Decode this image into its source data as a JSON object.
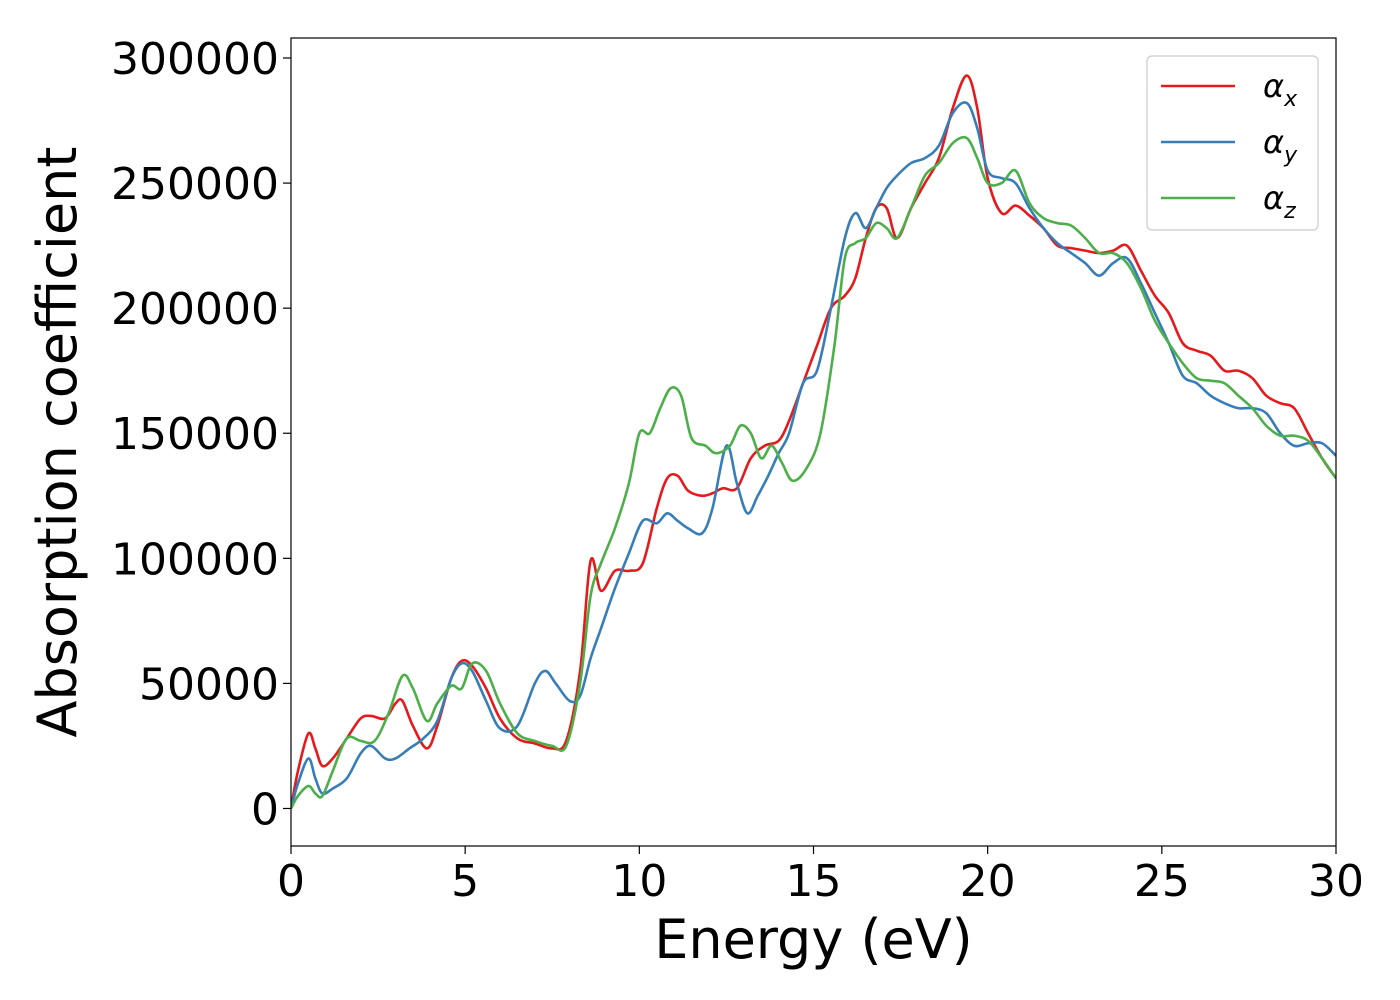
{
  "chart_data": {
    "type": "line",
    "title": "",
    "xlabel": "Energy (eV)",
    "ylabel": "Absorption coefficient",
    "xlim": [
      0,
      30
    ],
    "ylim": [
      -15000,
      308000
    ],
    "xticks": [
      0,
      5,
      10,
      15,
      20,
      25,
      30
    ],
    "yticks": [
      0,
      50000,
      100000,
      150000,
      200000,
      250000,
      300000
    ],
    "xtick_labels": [
      "0",
      "5",
      "10",
      "15",
      "20",
      "25",
      "30"
    ],
    "ytick_labels": [
      "0",
      "50000",
      "100000",
      "150000",
      "200000",
      "250000",
      "300000"
    ],
    "grid": false,
    "legend_position": "top-right",
    "series": [
      {
        "name": "α_x",
        "symbol": "α",
        "subscript": "x",
        "color": "#e41a1c",
        "x": [
          0,
          0.2,
          0.5,
          0.7,
          0.9,
          1.2,
          1.6,
          2.0,
          2.3,
          2.7,
          3.0,
          3.2,
          3.5,
          3.9,
          4.2,
          4.6,
          4.9,
          5.2,
          5.6,
          6.0,
          6.5,
          7.0,
          7.5,
          7.9,
          8.3,
          8.6,
          8.9,
          9.3,
          9.7,
          10.1,
          10.5,
          10.8,
          11.1,
          11.4,
          11.8,
          12.1,
          12.4,
          12.8,
          13.2,
          13.6,
          14.0,
          14.3,
          14.7,
          15.1,
          15.5,
          15.9,
          16.2,
          16.5,
          16.8,
          17.1,
          17.4,
          17.8,
          18.2,
          18.6,
          19.0,
          19.4,
          19.7,
          20.0,
          20.4,
          20.8,
          21.2,
          21.6,
          22.0,
          22.4,
          22.8,
          23.2,
          23.6,
          24.0,
          24.4,
          24.8,
          25.2,
          25.6,
          26.0,
          26.4,
          26.8,
          27.2,
          27.6,
          28.0,
          28.4,
          28.8,
          29.2,
          29.6,
          30.0
        ],
        "values": [
          0,
          15000,
          30000,
          24000,
          17000,
          20000,
          28000,
          36000,
          37000,
          36000,
          42000,
          43000,
          33000,
          24000,
          33000,
          52000,
          59000,
          57000,
          48000,
          36000,
          28000,
          26000,
          24000,
          27000,
          55000,
          99000,
          87000,
          95000,
          95000,
          98000,
          120000,
          132000,
          133000,
          127000,
          125000,
          126000,
          128000,
          128000,
          140000,
          145000,
          147000,
          155000,
          170000,
          185000,
          200000,
          205000,
          212000,
          228000,
          240000,
          240000,
          228000,
          240000,
          250000,
          260000,
          280000,
          293000,
          280000,
          252000,
          238000,
          241000,
          237000,
          232000,
          225000,
          224000,
          223000,
          222000,
          223000,
          225000,
          215000,
          205000,
          198000,
          186000,
          183000,
          181000,
          175000,
          175000,
          172000,
          165000,
          162000,
          160000,
          150000,
          140000,
          132000
        ]
      },
      {
        "name": "α_y",
        "symbol": "α",
        "subscript": "y",
        "color": "#377eb8",
        "x": [
          0,
          0.2,
          0.5,
          0.7,
          0.9,
          1.2,
          1.6,
          2.0,
          2.3,
          2.7,
          3.0,
          3.4,
          3.8,
          4.2,
          4.6,
          4.9,
          5.2,
          5.6,
          6.0,
          6.5,
          7.0,
          7.3,
          7.6,
          8.0,
          8.3,
          8.6,
          8.9,
          9.3,
          9.7,
          10.1,
          10.5,
          10.8,
          11.1,
          11.4,
          11.8,
          12.1,
          12.5,
          12.8,
          13.1,
          13.4,
          13.7,
          14.0,
          14.3,
          14.7,
          15.1,
          15.5,
          15.9,
          16.2,
          16.5,
          16.8,
          17.1,
          17.4,
          17.8,
          18.2,
          18.6,
          19.0,
          19.4,
          19.7,
          20.0,
          20.4,
          20.8,
          21.2,
          21.6,
          22.0,
          22.4,
          22.8,
          23.2,
          23.6,
          24.0,
          24.4,
          24.8,
          25.2,
          25.6,
          26.0,
          26.4,
          26.8,
          27.2,
          27.6,
          28.0,
          28.4,
          28.8,
          29.2,
          29.6,
          30.0
        ],
        "values": [
          0,
          10000,
          20000,
          12000,
          6000,
          8000,
          12000,
          22000,
          25000,
          20000,
          20000,
          24000,
          28000,
          35000,
          52000,
          58000,
          55000,
          43000,
          32000,
          33000,
          50000,
          55000,
          50000,
          43000,
          45000,
          60000,
          72000,
          88000,
          102000,
          115000,
          114000,
          118000,
          115000,
          112000,
          110000,
          120000,
          145000,
          130000,
          118000,
          125000,
          133000,
          142000,
          150000,
          170000,
          175000,
          200000,
          228000,
          238000,
          232000,
          240000,
          248000,
          253000,
          258000,
          260000,
          265000,
          278000,
          282000,
          272000,
          255000,
          252000,
          250000,
          240000,
          232000,
          226000,
          222000,
          218000,
          213000,
          218000,
          220000,
          210000,
          198000,
          186000,
          173000,
          170000,
          165000,
          162000,
          160000,
          160000,
          158000,
          150000,
          145000,
          146000,
          146000,
          141000
        ]
      },
      {
        "name": "α_z",
        "symbol": "α",
        "subscript": "z",
        "color": "#4daf4a",
        "x": [
          0,
          0.2,
          0.5,
          0.7,
          0.9,
          1.2,
          1.6,
          2.0,
          2.4,
          2.8,
          3.2,
          3.5,
          3.9,
          4.2,
          4.6,
          4.9,
          5.2,
          5.6,
          6.0,
          6.5,
          7.0,
          7.5,
          7.9,
          8.3,
          8.6,
          8.9,
          9.3,
          9.7,
          10.0,
          10.3,
          10.6,
          10.9,
          11.2,
          11.5,
          11.9,
          12.2,
          12.6,
          12.9,
          13.2,
          13.5,
          13.8,
          14.1,
          14.4,
          14.8,
          15.2,
          15.6,
          15.9,
          16.2,
          16.5,
          16.8,
          17.1,
          17.4,
          17.8,
          18.2,
          18.6,
          19.0,
          19.4,
          19.7,
          20.0,
          20.4,
          20.8,
          21.2,
          21.6,
          22.0,
          22.4,
          22.8,
          23.2,
          23.6,
          24.0,
          24.4,
          24.8,
          25.2,
          25.6,
          26.0,
          26.4,
          26.8,
          27.2,
          27.6,
          28.0,
          28.4,
          28.8,
          29.2,
          29.6,
          30.0
        ],
        "values": [
          0,
          5000,
          9000,
          6000,
          5000,
          15000,
          28000,
          27000,
          27000,
          38000,
          53000,
          48000,
          35000,
          42000,
          49000,
          48000,
          58000,
          55000,
          42000,
          30000,
          27000,
          25000,
          25000,
          50000,
          85000,
          98000,
          112000,
          130000,
          150000,
          150000,
          160000,
          168000,
          165000,
          148000,
          145000,
          142000,
          145000,
          153000,
          150000,
          140000,
          145000,
          138000,
          131000,
          136000,
          150000,
          185000,
          220000,
          226000,
          228000,
          234000,
          232000,
          228000,
          240000,
          253000,
          258000,
          266000,
          268000,
          260000,
          250000,
          250000,
          255000,
          242000,
          236000,
          234000,
          233000,
          228000,
          222000,
          222000,
          218000,
          208000,
          195000,
          186000,
          178000,
          172000,
          171000,
          170000,
          165000,
          160000,
          153000,
          149000,
          149000,
          147000,
          140000,
          132000
        ]
      }
    ]
  }
}
